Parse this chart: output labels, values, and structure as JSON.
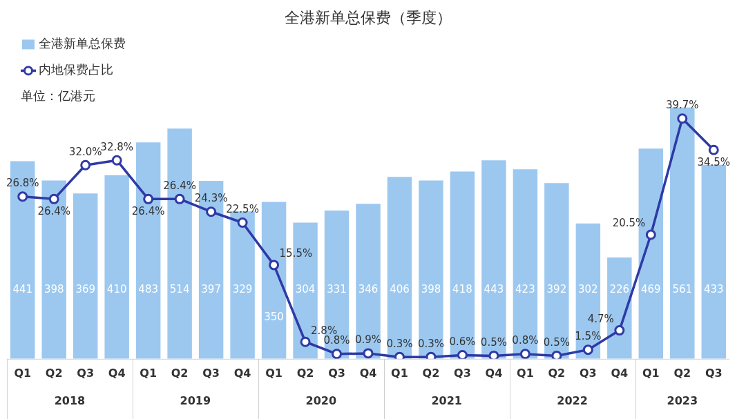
{
  "chart_data": {
    "type": "bar",
    "title": "全港新单总保费（季度）",
    "legend": "top left",
    "marker": "circle",
    "line_style": "solid",
    "grid": false,
    "categories": [
      "Q1",
      "Q2",
      "Q3",
      "Q4",
      "Q1",
      "Q2",
      "Q3",
      "Q4",
      "Q1",
      "Q2",
      "Q3",
      "Q4",
      "Q1",
      "Q2",
      "Q3",
      "Q4",
      "Q1",
      "Q2",
      "Q3",
      "Q4",
      "Q1",
      "Q2",
      "Q3"
    ],
    "annotations": [
      "单位：亿港元",
      "2018",
      "2019",
      "2020",
      "2021",
      "2022",
      "2023"
    ],
    "series": [
      {
        "name": "全港新单总保费",
        "type": "bar",
        "color": "#9cc8f0",
        "values": [
          441,
          398,
          369,
          410,
          483,
          514,
          397,
          329,
          350,
          304,
          331,
          346,
          406,
          398,
          418,
          443,
          423,
          392,
          302,
          226,
          469,
          561,
          433
        ],
        "value_labels": [
          "441",
          "398",
          "369",
          "410",
          "483",
          "514",
          "397",
          "329",
          "350",
          "304",
          "331",
          "346",
          "406",
          "398",
          "418",
          "443",
          "423",
          "392",
          "302",
          "226",
          "469",
          "561",
          "433"
        ]
      },
      {
        "name": "内地保费占比",
        "type": "line",
        "axis": "y2",
        "color": "#2e3aa6",
        "values": [
          26.8,
          26.4,
          32.0,
          32.8,
          26.4,
          26.4,
          24.3,
          22.5,
          15.5,
          2.8,
          0.8,
          0.9,
          0.3,
          0.3,
          0.6,
          0.5,
          0.8,
          0.5,
          1.5,
          4.7,
          20.5,
          39.7,
          34.5
        ],
        "value_labels": [
          "26.8%",
          "26.4%",
          "32.0%",
          "32.8%",
          "26.4%",
          "26.4%",
          "24.3%",
          "22.5%",
          "15.5%",
          "2.8%",
          "0.8%",
          "0.9%",
          "0.3%",
          "0.3%",
          "0.6%",
          "0.5%",
          "0.8%",
          "0.5%",
          "1.5%",
          "4.7%",
          "20.5%",
          "39.7%",
          "34.5%"
        ]
      }
    ]
  }
}
